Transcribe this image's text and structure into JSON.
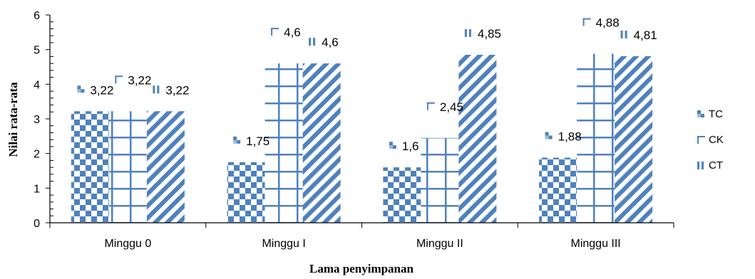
{
  "chart_data": {
    "type": "bar",
    "title": "",
    "xlabel": "Lama penyimpanan",
    "ylabel": "Nilai rata-rata",
    "ylim": [
      0,
      6
    ],
    "yticks": [
      "0",
      "1",
      "2",
      "3",
      "4",
      "5",
      "6"
    ],
    "categories": [
      "Minggu 0",
      "Minggu I",
      "Minggu II",
      "Minggu III"
    ],
    "series": [
      {
        "name": "TC",
        "values": [
          3.22,
          1.75,
          1.6,
          1.88
        ],
        "labels": [
          "3,22",
          "1,75",
          "1,6",
          "1,88"
        ]
      },
      {
        "name": "CK",
        "values": [
          3.22,
          4.6,
          2.45,
          4.88
        ],
        "labels": [
          "3,22",
          "4,6",
          "2,45",
          "4,88"
        ]
      },
      {
        "name": "CT",
        "values": [
          3.22,
          4.6,
          4.85,
          4.81
        ],
        "labels": [
          "3,22",
          "4,6",
          "4,85",
          "4,81"
        ]
      }
    ],
    "legend_position": "right",
    "colors": {
      "bar": "#4f81bd"
    }
  }
}
